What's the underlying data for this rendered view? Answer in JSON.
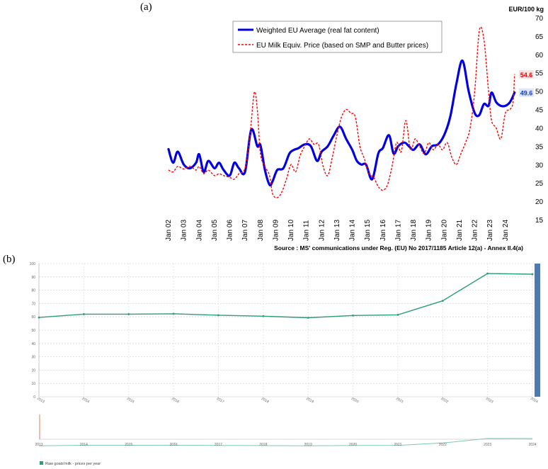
{
  "panel_a_label": "(a)",
  "panel_b_label": "(b)",
  "chart_data": [
    {
      "type": "line",
      "title": "",
      "ylabel": "EUR/100 kg",
      "xlabel": "",
      "ylim": [
        15,
        70
      ],
      "y_ticks": [
        15,
        20,
        25,
        30,
        35,
        40,
        45,
        50,
        55,
        60,
        65,
        70
      ],
      "x_tick_labels": [
        "Jan 02",
        "Jan 03",
        "Jan 04",
        "Jan 05",
        "Jan 06",
        "Jan 07",
        "Jan 08",
        "Jan 09",
        "Jan 10",
        "Jan 11",
        "Jan 12",
        "Jan 13",
        "Jan 14",
        "Jan 15",
        "Jan 16",
        "Jan 17",
        "Jan 18",
        "Jan 19",
        "Jan 20",
        "Jan 21",
        "Jan 22",
        "Jan 23",
        "Jan 24"
      ],
      "x_range": [
        2002,
        2024.75
      ],
      "source": "Source : MS' communications under Reg. (EU) No 2017/1185 Article 12(a)  -  Annex II.4(a)",
      "series": [
        {
          "name": "Weighted EU Average (real fat content)",
          "color": "#0000e0",
          "style": "solid",
          "end_label": "49.6",
          "x": [
            2002.0,
            2002.3,
            2002.6,
            2003.0,
            2003.4,
            2003.8,
            2004.0,
            2004.3,
            2004.6,
            2005.0,
            2005.3,
            2005.6,
            2006.0,
            2006.3,
            2006.6,
            2007.0,
            2007.4,
            2007.8,
            2008.0,
            2008.3,
            2008.6,
            2008.8,
            2009.1,
            2009.5,
            2009.9,
            2010.2,
            2010.5,
            2010.9,
            2011.3,
            2011.7,
            2012.0,
            2012.4,
            2012.8,
            2013.2,
            2013.6,
            2014.0,
            2014.3,
            2014.6,
            2014.9,
            2015.3,
            2015.7,
            2016.0,
            2016.4,
            2016.7,
            2017.0,
            2017.4,
            2017.7,
            2018.0,
            2018.4,
            2018.8,
            2019.2,
            2019.6,
            2020.0,
            2020.4,
            2020.8,
            2021.2,
            2021.6,
            2022.0,
            2022.3,
            2022.6,
            2022.9,
            2023.1,
            2023.4,
            2023.7,
            2024.0,
            2024.3,
            2024.6
          ],
          "values": [
            34.2,
            30.5,
            33.5,
            30.0,
            29.0,
            30.5,
            32.8,
            28.0,
            31.0,
            29.0,
            30.5,
            28.5,
            27.0,
            30.5,
            29.0,
            28.0,
            39.5,
            35.0,
            35.3,
            28.5,
            24.5,
            25.5,
            28.5,
            29.0,
            33.0,
            34.0,
            34.5,
            35.5,
            35.0,
            31.0,
            33.5,
            35.0,
            38.0,
            40.3,
            37.0,
            34.0,
            31.0,
            30.0,
            30.0,
            26.0,
            33.0,
            34.5,
            38.0,
            33.0,
            35.0,
            36.0,
            35.0,
            34.0,
            35.5,
            32.8,
            35.0,
            35.5,
            38.0,
            43.0,
            52.0,
            58.3,
            50.0,
            44.0,
            43.5,
            46.5,
            46.0,
            49.6,
            47.0,
            46.0,
            46.0,
            47.0,
            49.6
          ]
        },
        {
          "name": "EU Milk Equiv. Price (based on SMP and Butter prices)",
          "color": "#ff0000",
          "style": "dashed",
          "end_label": "54.6",
          "x": [
            2002.0,
            2002.3,
            2002.6,
            2003.0,
            2003.4,
            2003.8,
            2004.0,
            2004.3,
            2004.6,
            2005.0,
            2005.3,
            2005.6,
            2006.0,
            2006.3,
            2006.6,
            2007.0,
            2007.3,
            2007.6,
            2007.8,
            2008.0,
            2008.3,
            2008.6,
            2008.8,
            2009.1,
            2009.4,
            2009.7,
            2010.0,
            2010.3,
            2010.6,
            2010.9,
            2011.2,
            2011.5,
            2011.8,
            2012.1,
            2012.4,
            2012.7,
            2013.0,
            2013.3,
            2013.6,
            2013.9,
            2014.2,
            2014.5,
            2014.8,
            2015.1,
            2015.4,
            2015.7,
            2016.0,
            2016.3,
            2016.6,
            2016.9,
            2017.2,
            2017.5,
            2017.8,
            2018.1,
            2018.4,
            2018.7,
            2019.0,
            2019.3,
            2019.6,
            2019.9,
            2020.2,
            2020.5,
            2020.8,
            2021.1,
            2021.4,
            2021.7,
            2022.0,
            2022.3,
            2022.6,
            2022.9,
            2023.1,
            2023.4,
            2023.7,
            2024.0,
            2024.3,
            2024.5,
            2024.6
          ],
          "values": [
            28.5,
            28.0,
            29.5,
            28.8,
            29.5,
            28.5,
            29.5,
            27.5,
            28.5,
            27.0,
            27.5,
            27.0,
            26.5,
            26.0,
            27.5,
            29.0,
            37.0,
            49.5,
            45.0,
            33.0,
            29.5,
            27.0,
            22.0,
            21.0,
            22.5,
            26.0,
            30.0,
            28.0,
            32.5,
            35.0,
            37.0,
            35.5,
            35.5,
            29.5,
            27.0,
            32.0,
            38.0,
            43.0,
            45.0,
            44.0,
            43.0,
            35.0,
            31.5,
            27.5,
            26.5,
            24.0,
            23.0,
            24.5,
            29.5,
            36.0,
            33.5,
            42.0,
            34.0,
            37.0,
            35.0,
            33.0,
            36.0,
            34.0,
            35.5,
            34.0,
            36.0,
            32.0,
            30.0,
            33.0,
            36.0,
            40.0,
            50.0,
            66.5,
            64.0,
            50.0,
            42.0,
            40.0,
            37.0,
            44.0,
            45.0,
            47.0,
            54.6
          ]
        }
      ]
    },
    {
      "type": "line",
      "title": "",
      "xlabel": "",
      "ylabel": "",
      "ylim": [
        0,
        100
      ],
      "y_ticks": [
        0,
        10,
        20,
        30,
        40,
        50,
        60,
        70,
        80,
        90,
        100
      ],
      "categories": [
        "2013",
        "2014",
        "2015",
        "2016",
        "2017",
        "2018",
        "2019",
        "2020",
        "2021",
        "2022",
        "2023",
        "2024"
      ],
      "series": [
        {
          "name": "Raw goats'milk - prices per year",
          "color": "#2e9e74",
          "values": [
            59.5,
            62,
            62,
            62.3,
            61.2,
            60.5,
            59.3,
            61,
            61.5,
            72,
            92.5,
            92
          ]
        }
      ],
      "legend": "bottom-left",
      "navigator_categories": [
        "2013",
        "2014",
        "2015",
        "2016",
        "2017",
        "2018",
        "2019",
        "2020",
        "2021",
        "2022",
        "2023",
        "2024"
      ]
    }
  ]
}
